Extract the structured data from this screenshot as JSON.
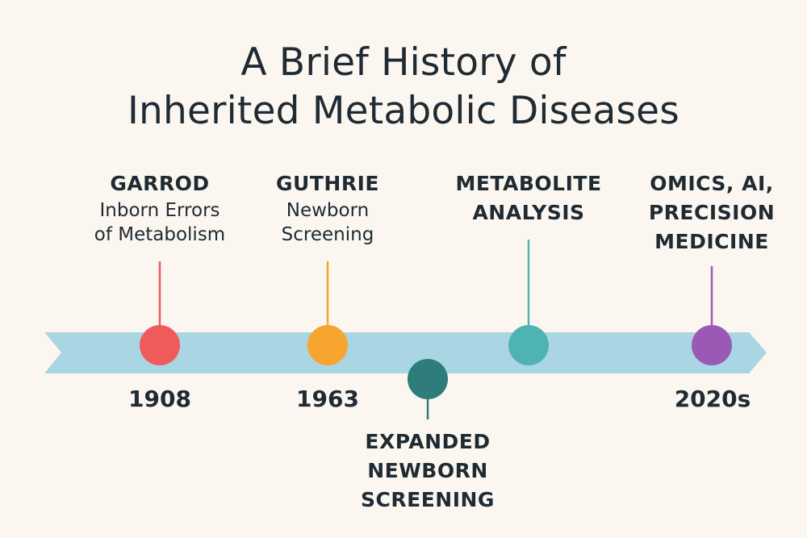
{
  "title": {
    "line1": "A Brief History of",
    "line2": "Inherited Metabolic Diseases"
  },
  "events": [
    {
      "heading": "GARROD",
      "sub1": "Inborn Errors",
      "sub2": "of Metabolism",
      "year": "1908",
      "color": "#ef5b5b"
    },
    {
      "heading": "GUTHRIE",
      "sub1": "Newborn",
      "sub2": "Screening",
      "year": "1963",
      "color": "#f7a531"
    },
    {
      "heading1": "EXPANDED",
      "heading2": "NEWBORN",
      "heading3": "SCREENING",
      "color": "#2e7d7b"
    },
    {
      "heading1": "METABOLITE",
      "heading2": "ANALYSIS",
      "color": "#4fb3b4"
    },
    {
      "heading1": "OMICS, AI,",
      "heading2": "PRECISION",
      "heading3": "MEDICINE",
      "year": "2020s",
      "color": "#9b59b6"
    }
  ],
  "colors": {
    "background": "#fbf7f0",
    "arrow": "#a9d6e2",
    "text": "#1f2a33"
  }
}
